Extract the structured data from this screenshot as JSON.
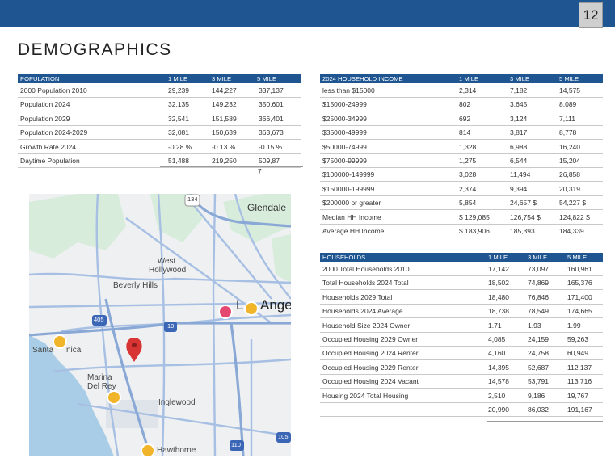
{
  "page_number": "12",
  "title": "DEMOGRAPHICS",
  "population": {
    "headers": [
      "POPULATION",
      "1 MILE",
      "3  MILE",
      "5  MILE"
    ],
    "rows": [
      {
        "label": "2000    Population     2010",
        "v1": "29,239",
        "v3": "144,227",
        "v5": "337,137"
      },
      {
        "label": "Population                  2024",
        "v1": "32,135",
        "v3": "149,232",
        "v5": "350,601"
      },
      {
        "label": "Population                  2029",
        "v1": "32,541",
        "v3": "151,589",
        "v5": "366,401"
      },
      {
        "label": "Population      2024-2029",
        "v1": "32,081",
        "v3": "150,639",
        "v5": "363,673"
      },
      {
        "label": "Growth         Rate         2024",
        "v1": "-0.28 %",
        "v3": "-0.13  %",
        "v5": "-0.15  %"
      },
      {
        "label": "Daytime Population",
        "v1": "51,488",
        "v3": "219,250",
        "v5": "509,87"
      }
    ],
    "overflow_digit": "7"
  },
  "income": {
    "headers": [
      "2024 HOUSEHOLD INCOME",
      "1 MILE",
      "3      MILE",
      "5      MILE"
    ],
    "rows": [
      {
        "label": "less than $15000",
        "v1": "2,314",
        "v3": "7,182",
        "v5": "14,575"
      },
      {
        "label": "$15000-24999",
        "v1": "802",
        "v3": "3,645",
        "v5": "8,089"
      },
      {
        "label": "$25000-34999",
        "v1": "692",
        "v3": "3,124",
        "v5": "7,111"
      },
      {
        "label": "$35000-49999",
        "v1": "814",
        "v3": "3,817",
        "v5": "8,778"
      },
      {
        "label": "$50000-74999",
        "v1": "1,328",
        "v3": "6,988",
        "v5": "16,240"
      },
      {
        "label": "$75000-99999",
        "v1": "1,275",
        "v3": "6,544",
        "v5": "15,204"
      },
      {
        "label": "$100000-149999",
        "v1": "3,028",
        "v3": "11,494",
        "v5": "26,858"
      },
      {
        "label": "$150000-199999",
        "v1": "2,374",
        "v3": "9,394",
        "v5": "20,319"
      },
      {
        "label": "$200000 or greater",
        "v1": "5,854",
        "v3": "24,657  $",
        "v5": "54,227  $"
      },
      {
        "label": "Median HH Income",
        "v1": "$ 129,085",
        "v3": "126,754 $",
        "v5": "124,822 $"
      },
      {
        "label": "Average HH Income",
        "v1": "$ 183,906",
        "v3": "185,393",
        "v5": "184,339"
      }
    ]
  },
  "households": {
    "headers": [
      "HOUSEHOLDS",
      "1 MILE",
      "3 MILE",
      "5 MILE"
    ],
    "rows": [
      {
        "label": "2000   Total   Households   2010",
        "v1": "17,142",
        "v3": "73,097",
        "v5": "160,961"
      },
      {
        "label": "Total   Households  2024   Total",
        "v1": "18,502",
        "v3": "74,869",
        "v5": "165,376"
      },
      {
        "label": "Households          2029         Total",
        "v1": "18,480",
        "v3": "76,846",
        "v5": "171,400"
      },
      {
        "label": "Households       2024       Average",
        "v1": "18,738",
        "v3": "78,549",
        "v5": "174,665"
      },
      {
        "label": "Household   Size   2024   Owner",
        "v1": "1.71",
        "v3": "1.93",
        "v5": "1.99"
      },
      {
        "label": "Occupied Housing 2029 Owner",
        "v1": "4,085",
        "v3": "24,159",
        "v5": "59,263"
      },
      {
        "label": "Occupied Housing 2024 Renter",
        "v1": "4,160",
        "v3": "24,758",
        "v5": "60,949"
      },
      {
        "label": "Occupied Housing 2029 Renter",
        "v1": "14,395",
        "v3": "52,687",
        "v5": "112,137"
      },
      {
        "label": "Occupied Housing 2024 Vacant",
        "v1": "14,578",
        "v3": "53,791",
        "v5": "113,716"
      },
      {
        "label": "Housing 2024 Total Housing",
        "v1": "2,510",
        "v3": "9,186",
        "v5": "19,767"
      },
      {
        "label": "",
        "v1": "20,990",
        "v3": "86,032",
        "v5": "191,167"
      }
    ]
  },
  "map": {
    "labels": {
      "glendale": "Glendale",
      "west_hollywood": "West Hollywood",
      "beverly_hills": "Beverly Hills",
      "la": "L",
      "la_rest": "Ange",
      "santa_monica_a": "Santa",
      "santa_monica_b": "nica",
      "marina": "Marina Del Rey",
      "inglewood": "Inglewood",
      "hawthorne": "Hawthorne"
    },
    "shields": {
      "i134": "134",
      "i405": "405",
      "i10": "10",
      "i110": "110",
      "i105": "105"
    },
    "icons": {
      "pin": "location-pin-icon",
      "star": "star-marker-icon",
      "heart": "heart-marker-icon"
    },
    "colors": {
      "road": "#9fb8dd",
      "park": "#cfe8d4",
      "water": "#a9cde6",
      "pin": "#d93434",
      "star": "#f1b52b"
    }
  }
}
